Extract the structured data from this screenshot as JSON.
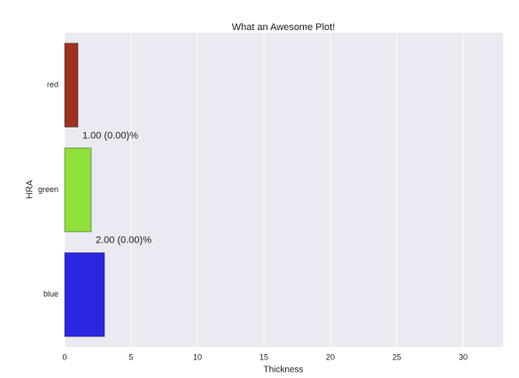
{
  "chart_data": {
    "type": "barh",
    "title": "What an Awesome Plot!",
    "xlabel": "Thickness",
    "ylabel": "HRA",
    "categories": [
      "red",
      "green",
      "blue"
    ],
    "values": [
      1,
      2,
      3
    ],
    "colors": [
      "#9e3121",
      "#8fe03a",
      "#2b27e0"
    ],
    "annotations": [
      "1.00 (0.00)%",
      "2.00 (0.00)%"
    ],
    "xlim": [
      0,
      33
    ],
    "xticks": [
      0,
      5,
      10,
      15,
      20,
      25,
      30
    ],
    "grid": true
  }
}
